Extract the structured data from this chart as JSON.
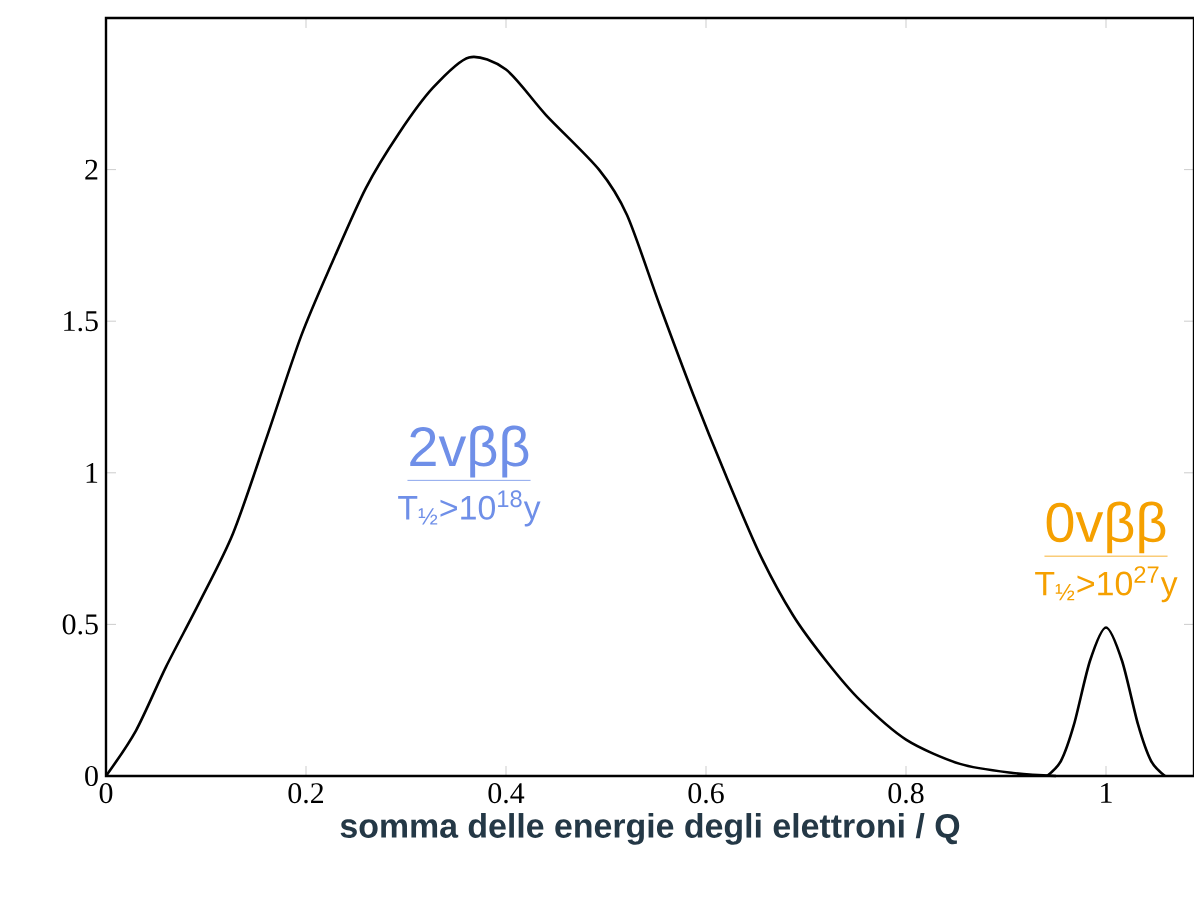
{
  "chart_data": {
    "type": "line",
    "xlabel": "somma delle energie degli elettroni / Q",
    "xlim": [
      0,
      1.088
    ],
    "ylim": [
      0,
      2.5
    ],
    "xticks": [
      0,
      0.2,
      0.4,
      0.6,
      0.8,
      1
    ],
    "yticks": [
      0,
      0.5,
      1,
      1.5,
      2
    ],
    "legend": false,
    "grid": false,
    "marker": "none",
    "line_style": "solid",
    "series": [
      {
        "name": "2vββ",
        "color": "#000000",
        "x": [
          0,
          0.03,
          0.06,
          0.093,
          0.127,
          0.16,
          0.195,
          0.227,
          0.26,
          0.293,
          0.327,
          0.363,
          0.4,
          0.44,
          0.493,
          0.521,
          0.554,
          0.587,
          0.62,
          0.654,
          0.687,
          0.72,
          0.754,
          0.8,
          0.854,
          0.907,
          0.95
        ],
        "values": [
          0,
          0.15,
          0.36,
          0.57,
          0.8,
          1.11,
          1.45,
          1.7,
          1.94,
          2.12,
          2.27,
          2.37,
          2.33,
          2.18,
          2.0,
          1.85,
          1.55,
          1.26,
          0.99,
          0.73,
          0.53,
          0.38,
          0.25,
          0.12,
          0.04,
          0.01,
          0
        ]
      },
      {
        "name": "0vββ",
        "color": "#000000",
        "x": [
          0.941,
          0.955,
          0.968,
          0.984,
          1.0,
          1.016,
          1.032,
          1.045,
          1.059
        ],
        "values": [
          0,
          0.05,
          0.17,
          0.38,
          0.49,
          0.38,
          0.17,
          0.05,
          0
        ]
      }
    ],
    "annotations": [
      "T$_{½}$>10$^{18}$y",
      "T$_{½}$>10$^{27}$y"
    ]
  }
}
